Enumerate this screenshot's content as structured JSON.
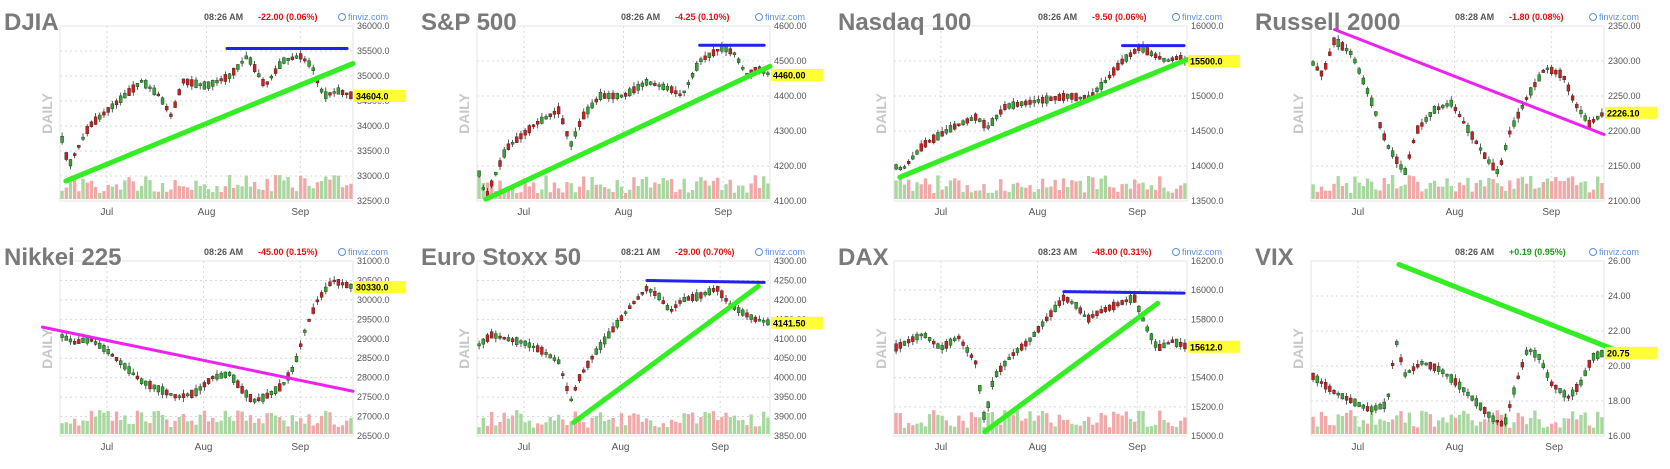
{
  "colors": {
    "up": "#2ea82e",
    "down": "#cc1f1f",
    "vol_up": "#a8d8a0",
    "vol_down": "#f0a8a8",
    "title": "#7a7a7a",
    "daily": "#c8c8c8",
    "neg": "#e01010",
    "pos": "#1f9a1f",
    "finviz": "#5a90d8",
    "grid": "#d8d8d8",
    "price_box": "#ffff33",
    "trend_green": "#33ee22",
    "trend_magenta": "#ee22ee",
    "trend_blue": "#2222ee"
  },
  "common": {
    "daily_label": "DAILY",
    "source": "finviz.com"
  },
  "chart_data": [
    {
      "type": "candlestick",
      "title": "DJIA",
      "time": "08:26 AM",
      "change": "-22.00 (0.06%)",
      "change_sign": "neg",
      "price_label": "34604.0",
      "ylim": [
        32500,
        36000
      ],
      "yticks": [
        "36000.0",
        "35500.0",
        "35000.0",
        "34500.0",
        "34000.0",
        "33500.0",
        "33000.0",
        "32500.0"
      ],
      "xticks": [
        {
          "label": "Jul",
          "pos": 0.16
        },
        {
          "label": "Aug",
          "pos": 0.5
        },
        {
          "label": "Sep",
          "pos": 0.82
        }
      ],
      "path": [
        [
          0,
          33900
        ],
        [
          0.03,
          33200
        ],
        [
          0.1,
          34000
        ],
        [
          0.2,
          34500
        ],
        [
          0.28,
          34900
        ],
        [
          0.34,
          34600
        ],
        [
          0.38,
          34200
        ],
        [
          0.42,
          34900
        ],
        [
          0.5,
          34800
        ],
        [
          0.58,
          35000
        ],
        [
          0.64,
          35400
        ],
        [
          0.7,
          34800
        ],
        [
          0.76,
          35300
        ],
        [
          0.82,
          35400
        ],
        [
          0.86,
          35200
        ],
        [
          0.9,
          34600
        ],
        [
          0.95,
          34700
        ],
        [
          1,
          34600
        ]
      ],
      "trendlines": [
        {
          "color": "trend_green",
          "x1": 0.02,
          "y1": 32900,
          "x2": 1.0,
          "y2": 35250,
          "width": 5
        },
        {
          "color": "trend_blue",
          "x1": 0.57,
          "y1": 35550,
          "x2": 0.98,
          "y2": 35550,
          "width": 3
        }
      ]
    },
    {
      "type": "candlestick",
      "title": "S&P 500",
      "time": "08:26 AM",
      "change": "-4.25 (0.10%)",
      "change_sign": "neg",
      "price_label": "4460.00",
      "ylim": [
        4100,
        4600
      ],
      "yticks": [
        "4600.00",
        "4500.00",
        "4400.00",
        "4300.00",
        "4200.00",
        "4100.00"
      ],
      "xticks": [
        {
          "label": "Jul",
          "pos": 0.16
        },
        {
          "label": "Aug",
          "pos": 0.5
        },
        {
          "label": "Sep",
          "pos": 0.84
        }
      ],
      "path": [
        [
          0,
          4200
        ],
        [
          0.03,
          4110
        ],
        [
          0.1,
          4250
        ],
        [
          0.2,
          4320
        ],
        [
          0.28,
          4360
        ],
        [
          0.32,
          4260
        ],
        [
          0.36,
          4340
        ],
        [
          0.42,
          4400
        ],
        [
          0.5,
          4400
        ],
        [
          0.58,
          4440
        ],
        [
          0.66,
          4420
        ],
        [
          0.7,
          4400
        ],
        [
          0.76,
          4500
        ],
        [
          0.84,
          4540
        ],
        [
          0.88,
          4520
        ],
        [
          0.92,
          4460
        ],
        [
          0.96,
          4480
        ],
        [
          1,
          4460
        ]
      ],
      "trendlines": [
        {
          "color": "trend_magenta",
          "x1": 0.03,
          "y1": 4110,
          "x2": 0.33,
          "y2": 4220,
          "width": 2
        },
        {
          "color": "trend_green",
          "x1": 0.03,
          "y1": 4105,
          "x2": 1.0,
          "y2": 4485,
          "width": 5
        },
        {
          "color": "trend_blue",
          "x1": 0.76,
          "y1": 4545,
          "x2": 0.98,
          "y2": 4545,
          "width": 3
        }
      ]
    },
    {
      "type": "candlestick",
      "title": "Nasdaq 100",
      "time": "08:26 AM",
      "change": "-9.50 (0.06%)",
      "change_sign": "neg",
      "price_label": "15500.0",
      "ylim": [
        13500,
        16000
      ],
      "yticks": [
        "16000.0",
        "15500.0",
        "15000.0",
        "14500.0",
        "14000.0",
        "13500.0"
      ],
      "xticks": [
        {
          "label": "Jul",
          "pos": 0.16
        },
        {
          "label": "Aug",
          "pos": 0.49
        },
        {
          "label": "Sep",
          "pos": 0.83
        }
      ],
      "path": [
        [
          0,
          14000
        ],
        [
          0.03,
          13950
        ],
        [
          0.1,
          14300
        ],
        [
          0.2,
          14550
        ],
        [
          0.28,
          14700
        ],
        [
          0.32,
          14550
        ],
        [
          0.38,
          14850
        ],
        [
          0.45,
          14900
        ],
        [
          0.52,
          14950
        ],
        [
          0.6,
          15000
        ],
        [
          0.66,
          14950
        ],
        [
          0.72,
          15200
        ],
        [
          0.78,
          15500
        ],
        [
          0.84,
          15700
        ],
        [
          0.88,
          15600
        ],
        [
          0.93,
          15500
        ],
        [
          0.97,
          15550
        ],
        [
          1,
          15500
        ]
      ],
      "trendlines": [
        {
          "color": "trend_green",
          "x1": 0.02,
          "y1": 13840,
          "x2": 1.0,
          "y2": 15520,
          "width": 5
        },
        {
          "color": "trend_blue",
          "x1": 0.78,
          "y1": 15720,
          "x2": 0.99,
          "y2": 15720,
          "width": 3
        }
      ]
    },
    {
      "type": "candlestick",
      "title": "Russell 2000",
      "time": "08:28 AM",
      "change": "-1.80 (0.08%)",
      "change_sign": "neg",
      "price_label": "2226.10",
      "ylim": [
        2100,
        2350
      ],
      "yticks": [
        "2350.00",
        "2300.00",
        "2250.00",
        "2200.00",
        "2150.00",
        "2100.00"
      ],
      "xticks": [
        {
          "label": "Jul",
          "pos": 0.16
        },
        {
          "label": "Aug",
          "pos": 0.49
        },
        {
          "label": "Sep",
          "pos": 0.82
        }
      ],
      "path": [
        [
          0,
          2300
        ],
        [
          0.04,
          2280
        ],
        [
          0.08,
          2330
        ],
        [
          0.14,
          2310
        ],
        [
          0.2,
          2250
        ],
        [
          0.26,
          2180
        ],
        [
          0.32,
          2140
        ],
        [
          0.36,
          2200
        ],
        [
          0.42,
          2230
        ],
        [
          0.48,
          2240
        ],
        [
          0.54,
          2200
        ],
        [
          0.6,
          2160
        ],
        [
          0.64,
          2140
        ],
        [
          0.68,
          2200
        ],
        [
          0.74,
          2250
        ],
        [
          0.8,
          2290
        ],
        [
          0.86,
          2280
        ],
        [
          0.9,
          2240
        ],
        [
          0.95,
          2210
        ],
        [
          1,
          2226
        ]
      ],
      "trendlines": [
        {
          "color": "trend_magenta",
          "x1": 0.08,
          "y1": 2345,
          "x2": 1.0,
          "y2": 2195,
          "width": 3
        }
      ]
    },
    {
      "type": "candlestick",
      "title": "Nikkei 225",
      "time": "08:26 AM",
      "change": "-45.00 (0.15%)",
      "change_sign": "neg",
      "price_label": "30330.0",
      "ylim": [
        26500,
        31000
      ],
      "yticks": [
        "31000.0",
        "30500.0",
        "30000.0",
        "29500.0",
        "29000.0",
        "28500.0",
        "28000.0",
        "27500.0",
        "27000.0",
        "26500.0"
      ],
      "xticks": [
        {
          "label": "Jul",
          "pos": 0.16
        },
        {
          "label": "Aug",
          "pos": 0.49
        },
        {
          "label": "Sep",
          "pos": 0.82
        }
      ],
      "path": [
        [
          0,
          29100
        ],
        [
          0.05,
          28900
        ],
        [
          0.1,
          29000
        ],
        [
          0.16,
          28700
        ],
        [
          0.22,
          28300
        ],
        [
          0.28,
          27900
        ],
        [
          0.34,
          27700
        ],
        [
          0.4,
          27500
        ],
        [
          0.46,
          27600
        ],
        [
          0.52,
          28000
        ],
        [
          0.58,
          28100
        ],
        [
          0.62,
          27700
        ],
        [
          0.66,
          27400
        ],
        [
          0.7,
          27500
        ],
        [
          0.76,
          27800
        ],
        [
          0.8,
          28300
        ],
        [
          0.84,
          29300
        ],
        [
          0.88,
          30000
        ],
        [
          0.93,
          30500
        ],
        [
          0.97,
          30400
        ],
        [
          1,
          30330
        ]
      ],
      "trendlines": [
        {
          "color": "trend_magenta",
          "x1": -0.06,
          "y1": 29300,
          "x2": 1.0,
          "y2": 27650,
          "width": 3
        }
      ]
    },
    {
      "type": "candlestick",
      "title": "Euro Stoxx 50",
      "time": "08:21 AM",
      "change": "-29.00 (0.70%)",
      "change_sign": "neg",
      "price_label": "4141.50",
      "ylim": [
        3850,
        4300
      ],
      "yticks": [
        "4300.00",
        "4250.00",
        "4200.00",
        "4150.00",
        "4100.00",
        "4050.00",
        "4000.00",
        "3950.00",
        "3900.00",
        "3850.00"
      ],
      "xticks": [
        {
          "label": "Jul",
          "pos": 0.16
        },
        {
          "label": "Aug",
          "pos": 0.49
        },
        {
          "label": "Sep",
          "pos": 0.83
        }
      ],
      "path": [
        [
          0,
          4080
        ],
        [
          0.05,
          4110
        ],
        [
          0.1,
          4100
        ],
        [
          0.16,
          4090
        ],
        [
          0.22,
          4070
        ],
        [
          0.28,
          4040
        ],
        [
          0.32,
          3940
        ],
        [
          0.35,
          4000
        ],
        [
          0.4,
          4060
        ],
        [
          0.46,
          4120
        ],
        [
          0.52,
          4180
        ],
        [
          0.58,
          4230
        ],
        [
          0.62,
          4210
        ],
        [
          0.66,
          4170
        ],
        [
          0.7,
          4200
        ],
        [
          0.76,
          4210
        ],
        [
          0.82,
          4230
        ],
        [
          0.86,
          4190
        ],
        [
          0.9,
          4170
        ],
        [
          0.95,
          4150
        ],
        [
          1,
          4141
        ]
      ],
      "trendlines": [
        {
          "color": "trend_green",
          "x1": 0.33,
          "y1": 3885,
          "x2": 0.96,
          "y2": 4235,
          "width": 5
        },
        {
          "color": "trend_blue",
          "x1": 0.58,
          "y1": 4250,
          "x2": 0.98,
          "y2": 4245,
          "width": 3
        }
      ]
    },
    {
      "type": "candlestick",
      "title": "DAX",
      "time": "08:23 AM",
      "change": "-48.00 (0.31%)",
      "change_sign": "neg",
      "price_label": "15612.0",
      "ylim": [
        15000,
        16200
      ],
      "yticks": [
        "16200.0",
        "16000.0",
        "15800.0",
        "15600.0",
        "15400.0",
        "15200.0",
        "15000.0"
      ],
      "xticks": [
        {
          "label": "Jul",
          "pos": 0.16
        },
        {
          "label": "Aug",
          "pos": 0.49
        },
        {
          "label": "Sep",
          "pos": 0.83
        }
      ],
      "path": [
        [
          0,
          15600
        ],
        [
          0.05,
          15650
        ],
        [
          0.1,
          15700
        ],
        [
          0.16,
          15600
        ],
        [
          0.22,
          15680
        ],
        [
          0.28,
          15500
        ],
        [
          0.31,
          15100
        ],
        [
          0.34,
          15400
        ],
        [
          0.4,
          15550
        ],
        [
          0.46,
          15650
        ],
        [
          0.52,
          15800
        ],
        [
          0.58,
          15950
        ],
        [
          0.62,
          15900
        ],
        [
          0.66,
          15800
        ],
        [
          0.7,
          15850
        ],
        [
          0.76,
          15900
        ],
        [
          0.82,
          15950
        ],
        [
          0.86,
          15750
        ],
        [
          0.9,
          15600
        ],
        [
          0.95,
          15650
        ],
        [
          1,
          15612
        ]
      ],
      "trendlines": [
        {
          "color": "trend_green",
          "x1": 0.31,
          "y1": 15030,
          "x2": 0.9,
          "y2": 15910,
          "width": 5
        },
        {
          "color": "trend_blue",
          "x1": 0.58,
          "y1": 15990,
          "x2": 0.99,
          "y2": 15980,
          "width": 3
        }
      ]
    },
    {
      "type": "candlestick",
      "title": "VIX",
      "time": "08:26 AM",
      "change": "+0.19 (0.95%)",
      "change_sign": "pos",
      "price_label": "20.75",
      "ylim": [
        16,
        26
      ],
      "yticks": [
        "26.00",
        "24.00",
        "22.00",
        "20.00",
        "18.00",
        "16.00"
      ],
      "xticks": [
        {
          "label": "Jul",
          "pos": 0.16
        },
        {
          "label": "Aug",
          "pos": 0.49
        },
        {
          "label": "Sep",
          "pos": 0.83
        }
      ],
      "path": [
        [
          0,
          19500
        ],
        [
          0.04,
          19000
        ],
        [
          0.08,
          18500
        ],
        [
          0.14,
          18000
        ],
        [
          0.2,
          17500
        ],
        [
          0.26,
          17800
        ],
        [
          0.29,
          21500
        ],
        [
          0.32,
          19500
        ],
        [
          0.38,
          20200
        ],
        [
          0.44,
          19800
        ],
        [
          0.5,
          19000
        ],
        [
          0.56,
          18000
        ],
        [
          0.62,
          17000
        ],
        [
          0.66,
          16600
        ],
        [
          0.7,
          19000
        ],
        [
          0.74,
          21000
        ],
        [
          0.78,
          20500
        ],
        [
          0.82,
          19000
        ],
        [
          0.88,
          18200
        ],
        [
          0.92,
          19000
        ],
        [
          0.96,
          20500
        ],
        [
          1,
          20750
        ]
      ],
      "path_scale": 0.001,
      "trendlines": [
        {
          "color": "trend_green",
          "x1": 0.3,
          "y1": 25.8,
          "x2": 1.04,
          "y2": 20.9,
          "width": 5
        }
      ]
    }
  ]
}
